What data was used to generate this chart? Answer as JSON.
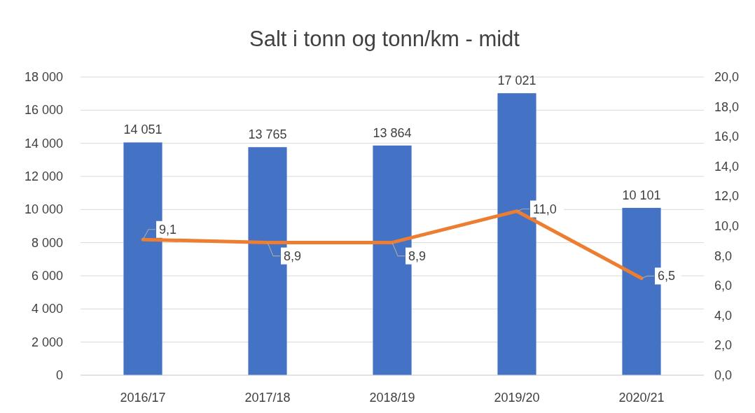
{
  "chart_data": {
    "type": "bar",
    "title": "Salt i tonn og tonn/km - midt",
    "categories": [
      "2016/17",
      "2017/18",
      "2018/19",
      "2019/20",
      "2020/21"
    ],
    "series": [
      {
        "color": "#4472c4",
        "values": [
          14051,
          13765,
          13864,
          17021,
          10101
        ],
        "value_labels": [
          "14 051",
          "13 765",
          "13 864",
          "17 021",
          "10 101"
        ]
      },
      {
        "type": "line",
        "axis": "y2",
        "color": "#ed7d31",
        "values": [
          9.1,
          8.9,
          8.9,
          11.0,
          6.5
        ],
        "value_labels": [
          "9,1",
          "8,9",
          "8,9",
          "11,0",
          "6,5"
        ],
        "marker": "none"
      }
    ],
    "ylim": [
      0,
      18000
    ],
    "yticks": [
      {
        "value": 0,
        "label": "0"
      },
      {
        "value": 2000,
        "label": "2 000"
      },
      {
        "value": 4000,
        "label": "4 000"
      },
      {
        "value": 6000,
        "label": "6 000"
      },
      {
        "value": 8000,
        "label": "8 000"
      },
      {
        "value": 10000,
        "label": "10 000"
      },
      {
        "value": 12000,
        "label": "12 000"
      },
      {
        "value": 14000,
        "label": "14 000"
      },
      {
        "value": 16000,
        "label": "16 000"
      },
      {
        "value": 18000,
        "label": "18 000"
      }
    ],
    "y2lim": [
      0,
      20
    ],
    "y2ticks": [
      {
        "value": 0,
        "label": "0,0"
      },
      {
        "value": 2,
        "label": "2,0"
      },
      {
        "value": 4,
        "label": "4,0"
      },
      {
        "value": 6,
        "label": "6,0"
      },
      {
        "value": 8,
        "label": "8,0"
      },
      {
        "value": 10,
        "label": "10,0"
      },
      {
        "value": 12,
        "label": "12,0"
      },
      {
        "value": 14,
        "label": "14,0"
      },
      {
        "value": 16,
        "label": "16,0"
      },
      {
        "value": 18,
        "label": "18,0"
      },
      {
        "value": 20,
        "label": "20,0"
      }
    ],
    "grid": "y"
  }
}
